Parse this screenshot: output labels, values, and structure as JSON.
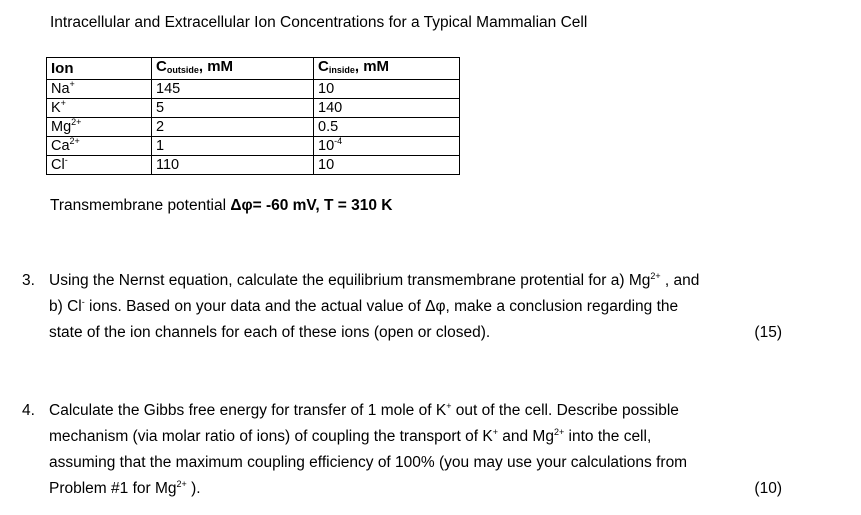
{
  "title": "Intracellular and Extracellular Ion Concentrations for a Typical Mammalian Cell",
  "table": {
    "headers": [
      {
        "main": "Ion",
        "sub": "",
        "unit": ""
      },
      {
        "main": "C",
        "sub": "outside",
        "unit": ", mM"
      },
      {
        "main": "C",
        "sub": "inside",
        "unit": ", mM"
      }
    ],
    "rows": [
      {
        "ion": "Na",
        "charge": "+",
        "outside": "145",
        "inside": "10",
        "inside_exp": ""
      },
      {
        "ion": "K",
        "charge": "+",
        "outside": "5",
        "inside": "140",
        "inside_exp": ""
      },
      {
        "ion": "Mg",
        "charge": "2+",
        "outside": "2",
        "inside": "0.5",
        "inside_exp": ""
      },
      {
        "ion": "Ca",
        "charge": "2+",
        "outside": "1",
        "inside": "10",
        "inside_exp": "-4"
      },
      {
        "ion": "Cl",
        "charge": "-",
        "outside": "110",
        "inside": "10",
        "inside_exp": ""
      }
    ]
  },
  "potential": {
    "label": "Transmembrane potential ",
    "value": "Δφ=  -60 mV, T = 310 K"
  },
  "questions": [
    {
      "number": "3.",
      "lines": [
        [
          "Using the Nernst equation, calculate the equilibrium transmembrane protential for a) Mg",
          "2+",
          " , and"
        ],
        [
          "b) Cl",
          "-",
          " ions.  Based on your data and the actual value of Δφ,  make a conclusion regarding the"
        ],
        [
          "state of the ion channels for each of these  ions (open or closed).",
          "",
          ""
        ]
      ],
      "points": "(15)"
    },
    {
      "number": "4.",
      "lines": [
        [
          "Calculate the Gibbs free energy for transfer of 1 mole of K",
          "+",
          " out of the cell. Describe possible"
        ],
        [
          "mechanism (via molar ratio of ions) of coupling the transport of K",
          "+",
          " and Mg"
        ],
        [
          "assuming that the maximum coupling efficiency of 100% (you may use your calculations from",
          "",
          ""
        ],
        [
          "Problem #1 for Mg",
          "2+",
          " )."
        ]
      ],
      "line2_tail": {
        "sup": "2+",
        "text": " into the cell,"
      },
      "points": "(10)"
    }
  ]
}
